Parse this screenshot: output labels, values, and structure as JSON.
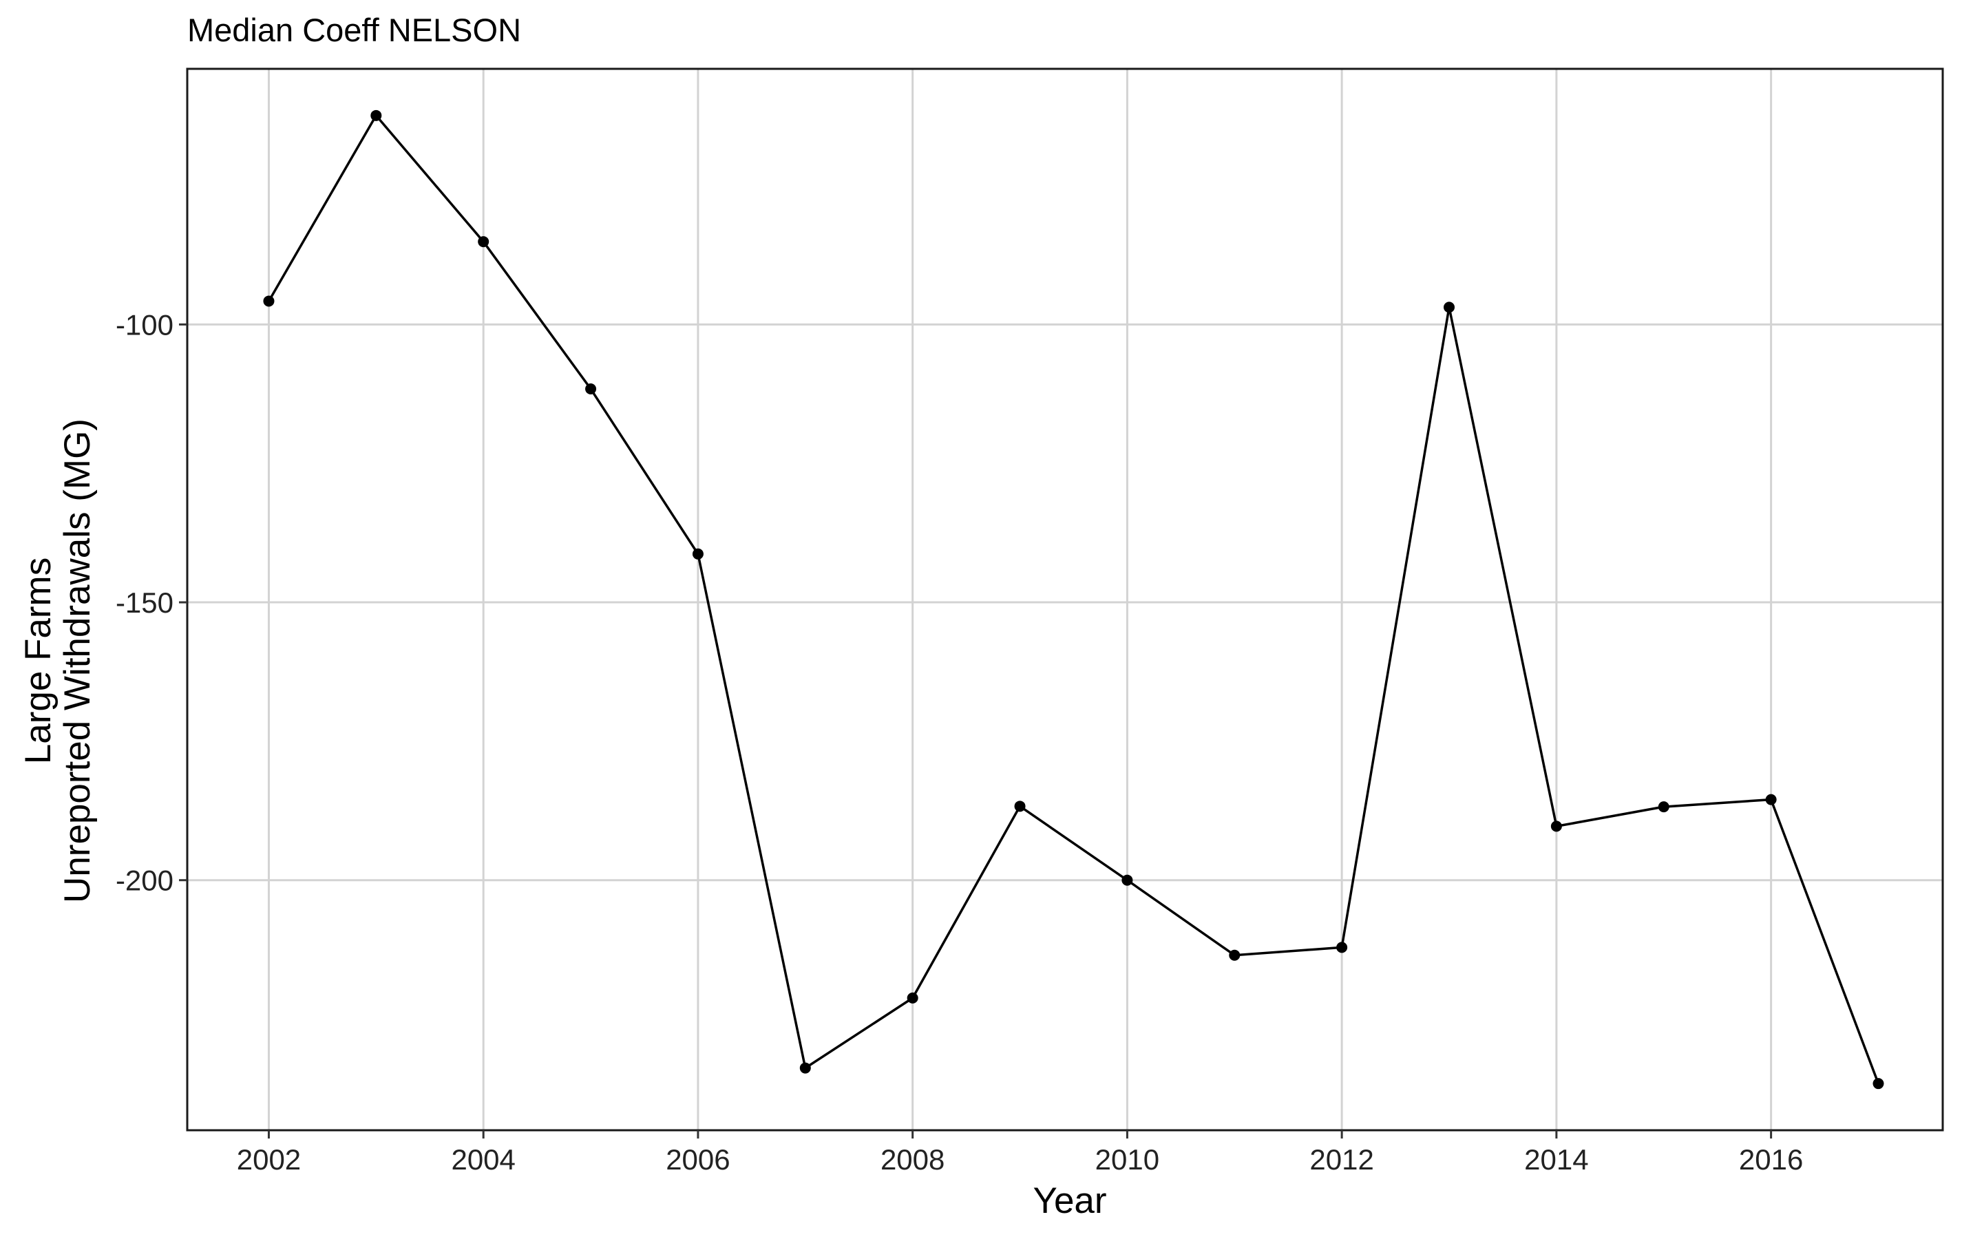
{
  "chart_data": {
    "type": "line",
    "title": "Median Coeff NELSON",
    "xlabel": "Year",
    "ylabel_lines": [
      "Large Farms",
      "Unreported Withdrawals (MG)"
    ],
    "xlim": [
      2001.24,
      2017.6
    ],
    "ylim": [
      -245,
      -54
    ],
    "x_ticks": [
      2002,
      2004,
      2006,
      2008,
      2010,
      2012,
      2014,
      2016
    ],
    "x_tick_labels": [
      "2002",
      "2004",
      "2006",
      "2008",
      "2010",
      "2012",
      "2014",
      "2016"
    ],
    "y_ticks": [
      -100,
      -150,
      -200
    ],
    "y_tick_labels": [
      "-100",
      "-150",
      "-200"
    ],
    "grid": true,
    "series": [
      {
        "x": [
          2002.0,
          2003.0,
          2004.0,
          2005.0,
          2006.0,
          2007.0,
          2008.0,
          2009.0,
          2010.0,
          2011.0,
          2012.0,
          2013.0,
          2014.0,
          2015.0,
          2016.0,
          2017.0
        ],
        "y": [
          -95.8,
          -62.4,
          -85.1,
          -111.6,
          -141.3,
          -233.8,
          -221.2,
          -186.7,
          -200.0,
          -213.5,
          -212.1,
          -96.9,
          -190.3,
          -186.8,
          -185.5,
          -236.6
        ],
        "color": "#000000"
      }
    ]
  }
}
